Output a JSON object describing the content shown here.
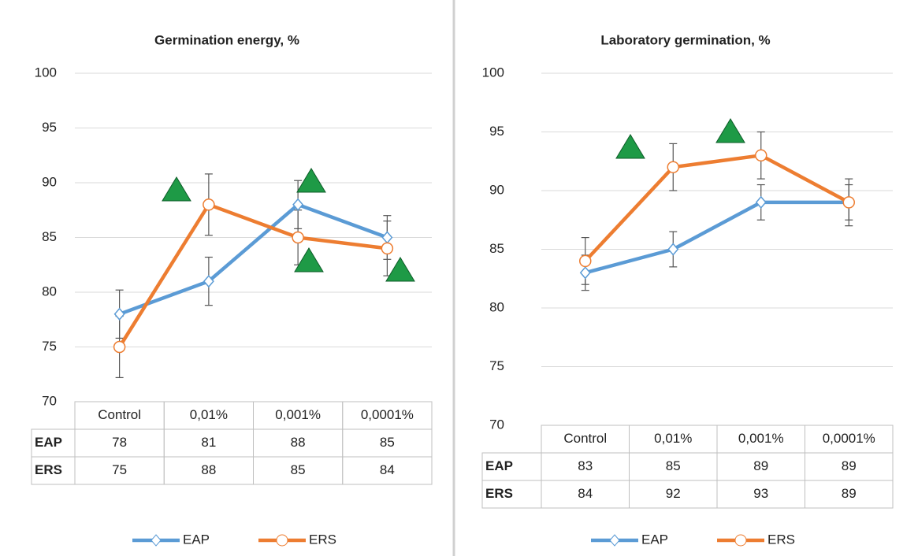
{
  "chart_data": [
    {
      "type": "line",
      "title": "Germination energy, %",
      "categories": [
        "Control",
        "0,01%",
        "0,001%",
        "0,0001%"
      ],
      "series": [
        {
          "name": "EAP",
          "color": "#5b9bd5",
          "values": [
            78,
            81,
            88,
            85
          ],
          "errors": [
            2.2,
            2.2,
            2.2,
            2
          ]
        },
        {
          "name": "ERS",
          "color": "#ed7d31",
          "values": [
            75,
            88,
            85,
            84
          ],
          "errors": [
            2.8,
            2.8,
            2.5,
            2.5
          ]
        }
      ],
      "ylim": [
        70,
        100
      ],
      "yticks": [
        70,
        75,
        80,
        85,
        90,
        95,
        100
      ],
      "grid": true
    },
    {
      "type": "line",
      "title": "Laboratory germination, %",
      "categories": [
        "Control",
        "0,01%",
        "0,001%",
        "0,0001%"
      ],
      "series": [
        {
          "name": "EAP",
          "color": "#5b9bd5",
          "values": [
            83,
            85,
            89,
            89
          ],
          "errors": [
            1.5,
            1.5,
            1.5,
            1.5
          ]
        },
        {
          "name": "ERS",
          "color": "#ed7d31",
          "values": [
            84,
            92,
            93,
            89
          ],
          "errors": [
            2,
            2,
            2,
            2
          ]
        }
      ],
      "ylim": [
        70,
        100
      ],
      "yticks": [
        70,
        75,
        80,
        85,
        90,
        95,
        100
      ],
      "grid": true
    }
  ]
}
